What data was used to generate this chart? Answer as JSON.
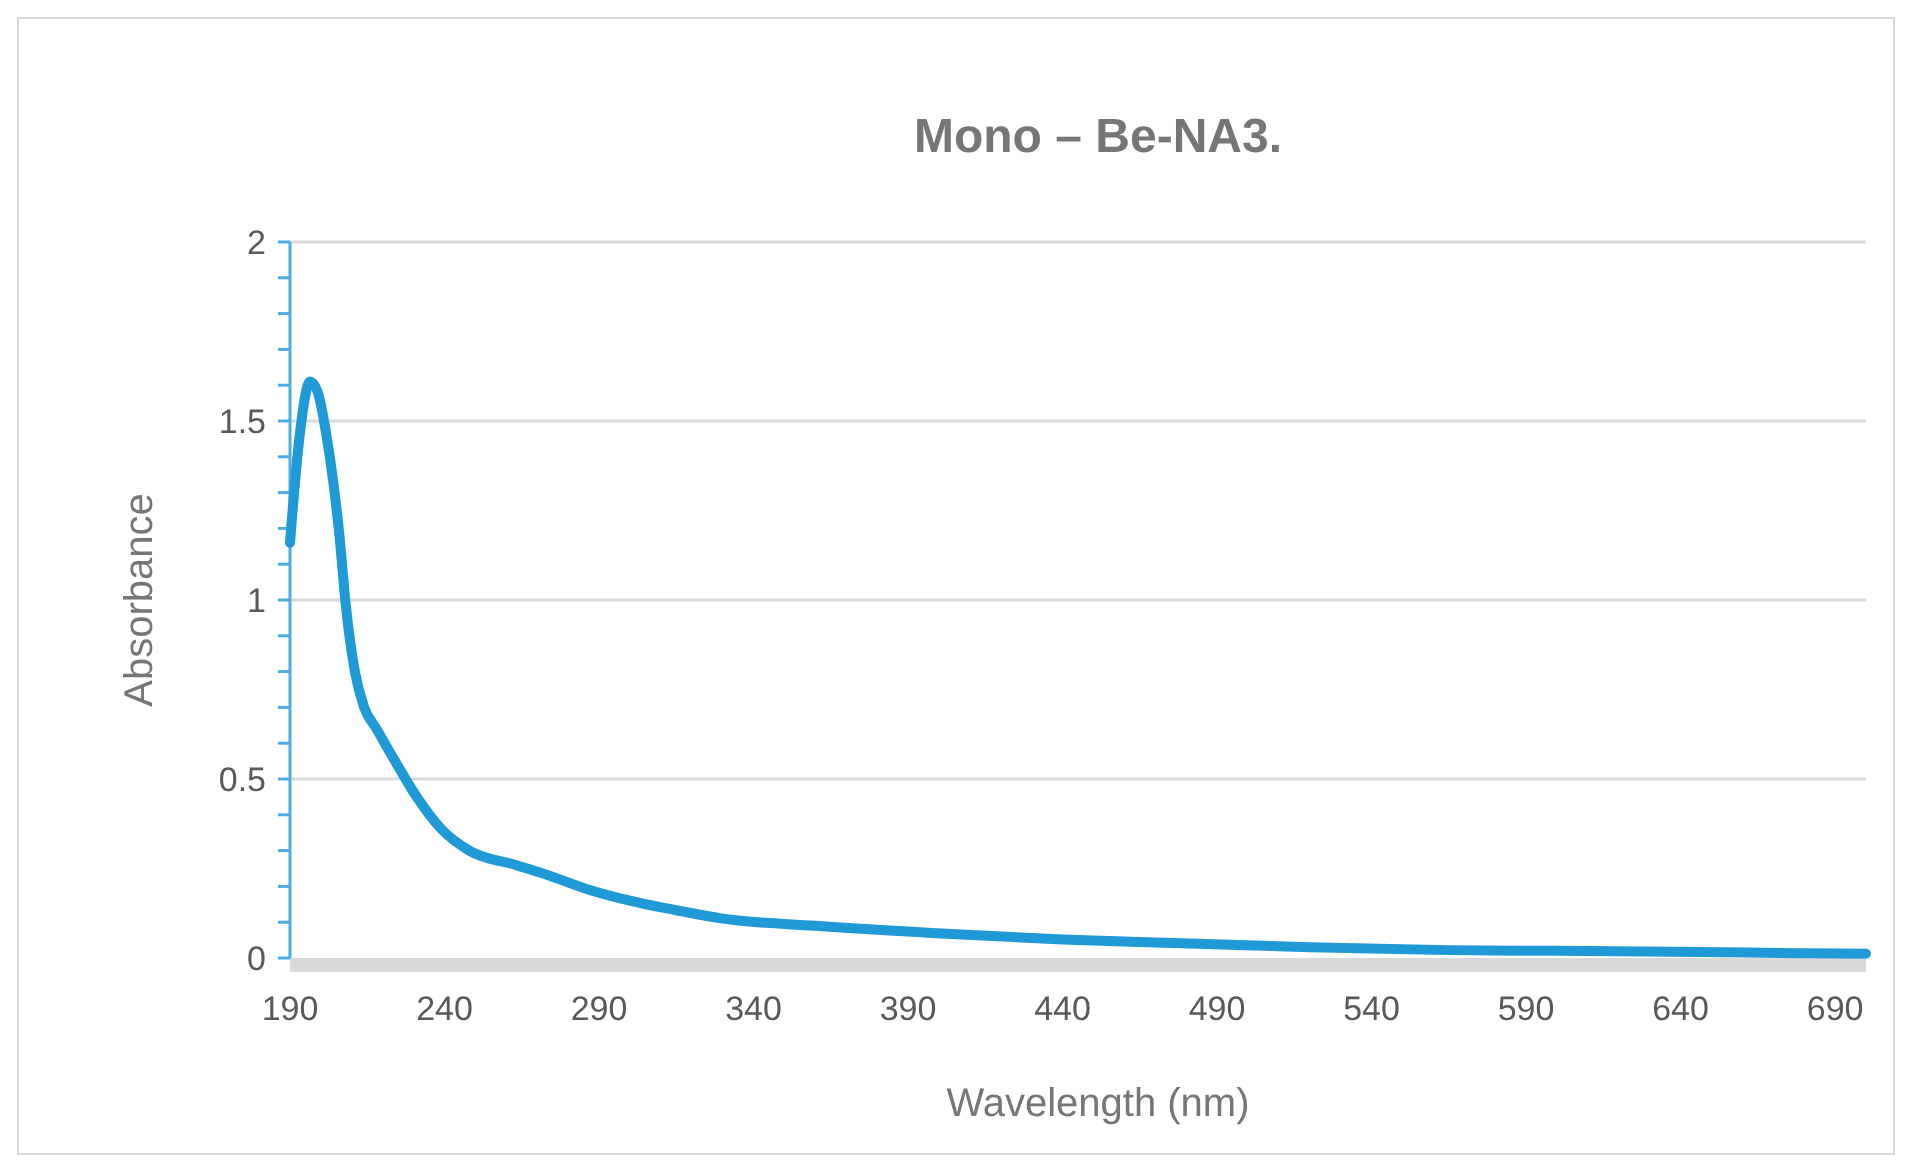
{
  "chart_data": {
    "type": "line",
    "title": "Mono – Be-NA3.",
    "xlabel": "Wavelength (nm)",
    "ylabel": "Absorbance",
    "series": [
      {
        "color": "#1f9ad6",
        "x": [
          190,
          193,
          196.5,
          199,
          201.6,
          204,
          206,
          208,
          211,
          214,
          218,
          224,
          231,
          239,
          248,
          263,
          274,
          287,
          300,
          317,
          330,
          360,
          404,
          440,
          484,
          520,
          565,
          600,
          646,
          680,
          700
        ],
        "values": [
          1.16,
          1.45,
          1.61,
          1.58,
          1.47,
          1.33,
          1.18,
          0.99,
          0.8,
          0.7,
          0.64,
          0.55,
          0.45,
          0.36,
          0.3,
          0.26,
          0.23,
          0.19,
          0.16,
          0.13,
          0.11,
          0.09,
          0.067,
          0.052,
          0.04,
          0.03,
          0.022,
          0.02,
          0.017,
          0.013,
          0.012
        ]
      }
    ],
    "xlim": [
      190,
      700
    ],
    "xticks": [
      190,
      240,
      290,
      340,
      390,
      440,
      490,
      540,
      590,
      640,
      690
    ],
    "ylim": [
      0,
      2
    ],
    "yticks": [
      0,
      {
        "value": 0.1,
        "label": null
      },
      {
        "value": 0.2,
        "label": null
      },
      {
        "value": 0.3,
        "label": null
      },
      {
        "value": 0.4,
        "label": null
      },
      0.5,
      {
        "value": 0.6,
        "label": null
      },
      {
        "value": 0.7,
        "label": null
      },
      {
        "value": 0.8,
        "label": null
      },
      {
        "value": 0.9,
        "label": null
      },
      1,
      {
        "value": 1.1,
        "label": null
      },
      {
        "value": 1.2,
        "label": null
      },
      {
        "value": 1.3,
        "label": null
      },
      {
        "value": 1.4,
        "label": null
      },
      1.5,
      {
        "value": 1.6,
        "label": null
      },
      {
        "value": 1.7,
        "label": null
      },
      {
        "value": 1.8,
        "label": null
      },
      {
        "value": 1.9,
        "label": null
      },
      2
    ],
    "grid": "y",
    "marker": "none",
    "line_style": "solid"
  }
}
